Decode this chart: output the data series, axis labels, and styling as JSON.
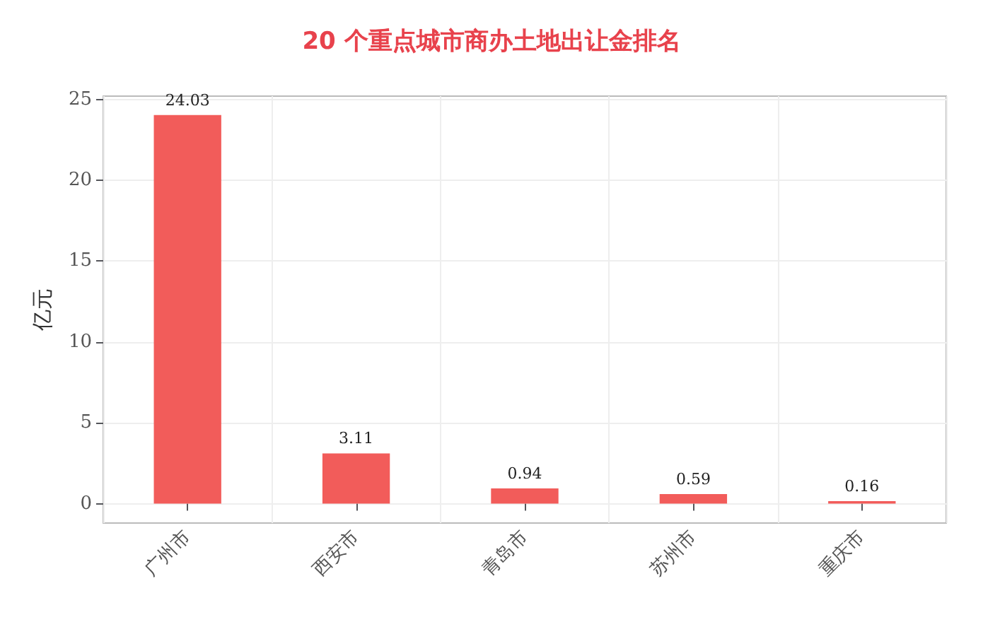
{
  "chart_data": {
    "type": "bar",
    "title": "20 个重点城市商办土地出让金排名",
    "ylabel": "亿元",
    "categories": [
      "广州市",
      "西安市",
      "青岛市",
      "苏州市",
      "重庆市"
    ],
    "values": [
      24.03,
      3.11,
      0.94,
      0.59,
      0.16
    ],
    "color": "#f25c5a",
    "ylim": [
      -1.2,
      25.2
    ],
    "yticks": [
      0,
      5,
      10,
      15,
      20,
      25
    ],
    "grid": true,
    "data_labels": true
  }
}
